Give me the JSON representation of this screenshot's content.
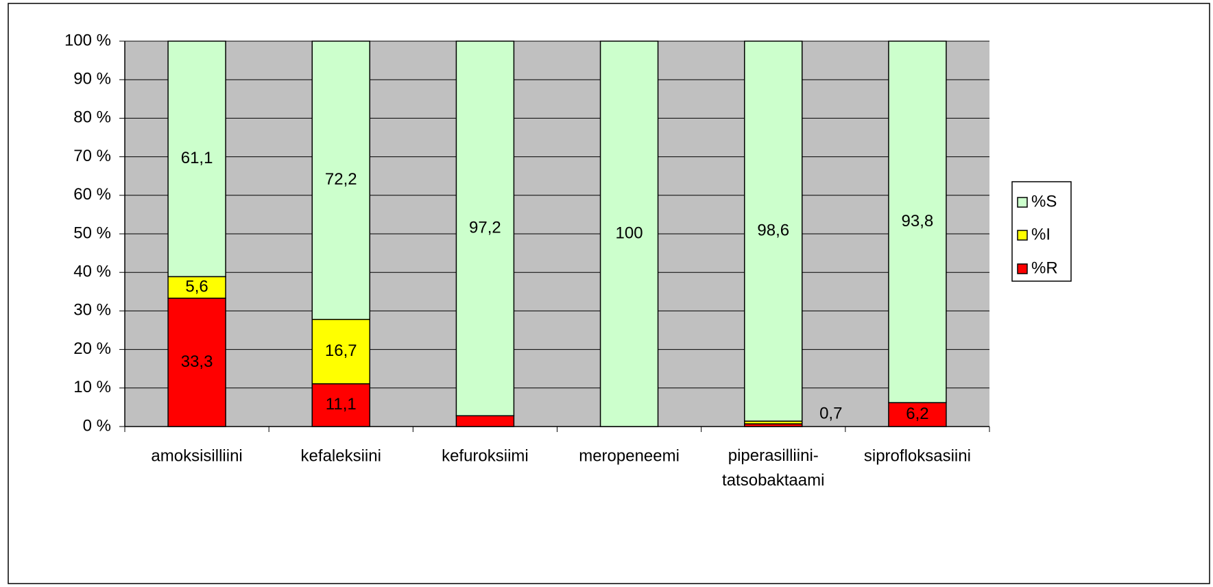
{
  "chart_data": {
    "type": "stacked_bar",
    "categories": [
      "amoksisilliini",
      "kefaleksiini",
      "kefuroksiimi",
      "meropeneemi",
      "piperasilliini-tatsobaktaami",
      "siprofloksasiini"
    ],
    "series": [
      {
        "name": "%R",
        "color": "#ff0000",
        "values": [
          33.3,
          11.1,
          2.8,
          null,
          0.7,
          6.2
        ],
        "value_labels": [
          "33,3",
          "11,1",
          "2,8",
          null,
          "0,7",
          "6,2"
        ]
      },
      {
        "name": "%I",
        "color": "#ffff00",
        "values": [
          5.6,
          16.7,
          null,
          null,
          0.7,
          null
        ],
        "value_labels": [
          "5,6",
          "16,7",
          null,
          null,
          "0,7",
          null
        ]
      },
      {
        "name": "%S",
        "color": "#ccffcc",
        "values": [
          61.1,
          72.2,
          97.2,
          100,
          98.6,
          93.8
        ],
        "value_labels": [
          "61,1",
          "72,2",
          "97,2",
          "100",
          "98,6",
          "93,8"
        ]
      }
    ],
    "ylim": [
      0,
      100
    ],
    "yticks": [
      {
        "value": 0,
        "label": "0 %"
      },
      {
        "value": 10,
        "label": "10 %"
      },
      {
        "value": 20,
        "label": "20 %"
      },
      {
        "value": 30,
        "label": "30 %"
      },
      {
        "value": 40,
        "label": "40 %"
      },
      {
        "value": 50,
        "label": "50 %"
      },
      {
        "value": 60,
        "label": "60 %"
      },
      {
        "value": 70,
        "label": "70 %"
      },
      {
        "value": 80,
        "label": "80 %"
      },
      {
        "value": 90,
        "label": "90 %"
      },
      {
        "value": 100,
        "label": "100 %"
      }
    ],
    "grid": true,
    "legend": "right"
  }
}
